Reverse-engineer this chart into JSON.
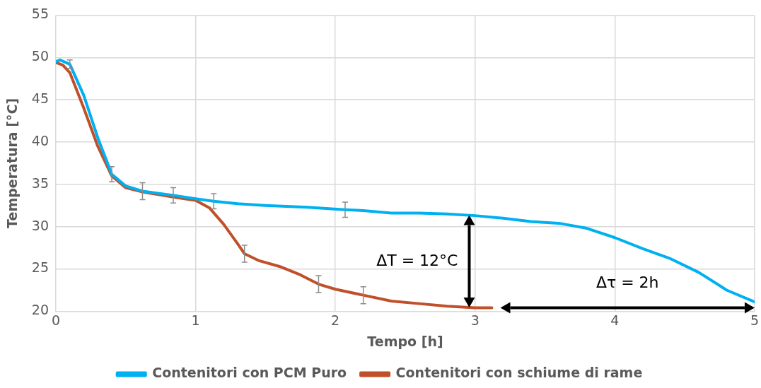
{
  "chart_data": {
    "type": "line",
    "xlabel": "Tempo [h]",
    "ylabel": "Temperatura [°C]",
    "xlim": [
      0,
      5
    ],
    "xticks": [
      0,
      1,
      2,
      3,
      4,
      5
    ],
    "ylim": [
      20,
      55
    ],
    "yticks": [
      20,
      25,
      30,
      35,
      40,
      45,
      50,
      55
    ],
    "grid": true,
    "legend": "bottom",
    "marker": "none",
    "line_style": "solid",
    "series": [
      {
        "name": "Contenitori con PCM Puro",
        "color": "#00b0f0",
        "x": [
          0,
          0.03,
          0.1,
          0.2,
          0.3,
          0.4,
          0.5,
          0.62,
          0.84,
          1.0,
          1.13,
          1.3,
          1.5,
          1.8,
          2.07,
          2.2,
          2.4,
          2.6,
          2.8,
          3.0,
          3.2,
          3.4,
          3.6,
          3.8,
          4.0,
          4.2,
          4.4,
          4.6,
          4.8,
          5.0
        ],
        "values": [
          49.5,
          49.7,
          49.2,
          45.5,
          40.5,
          36.2,
          34.8,
          34.2,
          33.7,
          33.3,
          33.0,
          32.7,
          32.5,
          32.3,
          32.0,
          31.9,
          31.6,
          31.6,
          31.5,
          31.3,
          31.0,
          30.6,
          30.4,
          29.8,
          28.7,
          27.4,
          26.2,
          24.6,
          22.5,
          21.1
        ],
        "errors": [
          null,
          null,
          0.5,
          null,
          null,
          0.9,
          null,
          1,
          0.9,
          null,
          0.9,
          null,
          null,
          null,
          0.9,
          null,
          null,
          null,
          null,
          null,
          null,
          null,
          null,
          null,
          null,
          null,
          null,
          null,
          null,
          null
        ]
      },
      {
        "name": "Contenitori con schiume di rame",
        "color": "#c0502a",
        "x": [
          0,
          0.05,
          0.1,
          0.2,
          0.3,
          0.4,
          0.5,
          0.62,
          0.84,
          1.0,
          1.1,
          1.2,
          1.3,
          1.35,
          1.45,
          1.6,
          1.75,
          1.88,
          2.0,
          2.2,
          2.4,
          2.6,
          2.8,
          3.0,
          3.12
        ],
        "values": [
          49.4,
          49.1,
          48.2,
          44,
          39.5,
          36,
          34.6,
          34.1,
          33.5,
          33.1,
          32.2,
          30.3,
          28,
          26.8,
          26,
          25.3,
          24.3,
          23.2,
          22.6,
          21.9,
          21.2,
          20.9,
          20.6,
          20.4,
          20.4
        ],
        "errors": [
          null,
          null,
          null,
          null,
          null,
          null,
          null,
          null,
          null,
          null,
          null,
          null,
          null,
          1,
          null,
          null,
          null,
          1,
          null,
          1,
          null,
          null,
          null,
          null,
          null
        ]
      }
    ],
    "annotations": [
      "ΔT = 12°C",
      "Δτ = 2h"
    ]
  }
}
